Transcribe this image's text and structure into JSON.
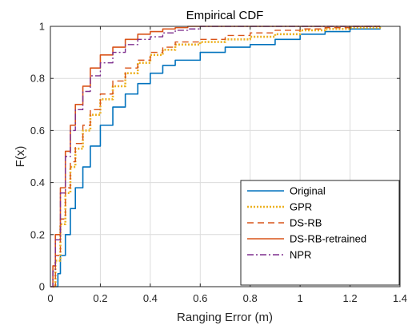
{
  "chart_data": {
    "type": "line",
    "title": "Empirical CDF",
    "xlabel": "Ranging Error (m)",
    "ylabel": "F(x)",
    "xlim": [
      0,
      1.4
    ],
    "ylim": [
      0,
      1
    ],
    "xticks": [
      "0",
      "0.2",
      "0.4",
      "0.6",
      "0.8",
      "1",
      "1.2",
      "1.4"
    ],
    "yticks": [
      "0",
      "0.2",
      "0.4",
      "0.6",
      "0.8",
      "1"
    ],
    "grid": true,
    "legend_position": "bottom-right",
    "series": [
      {
        "name": "Original",
        "color": "#0072BD",
        "dash": "solid",
        "points": [
          [
            0.02,
            0
          ],
          [
            0.03,
            0.05
          ],
          [
            0.04,
            0.12
          ],
          [
            0.06,
            0.2
          ],
          [
            0.08,
            0.3
          ],
          [
            0.1,
            0.38
          ],
          [
            0.13,
            0.46
          ],
          [
            0.16,
            0.54
          ],
          [
            0.2,
            0.62
          ],
          [
            0.25,
            0.69
          ],
          [
            0.3,
            0.74
          ],
          [
            0.35,
            0.78
          ],
          [
            0.4,
            0.82
          ],
          [
            0.45,
            0.85
          ],
          [
            0.5,
            0.87
          ],
          [
            0.6,
            0.9
          ],
          [
            0.7,
            0.92
          ],
          [
            0.8,
            0.93
          ],
          [
            0.9,
            0.95
          ],
          [
            1.0,
            0.97
          ],
          [
            1.1,
            0.98
          ],
          [
            1.2,
            0.99
          ],
          [
            1.32,
            1.0
          ]
        ]
      },
      {
        "name": "GPR",
        "color": "#EDB120",
        "dash": "dotted",
        "points": [
          [
            0.01,
            0
          ],
          [
            0.02,
            0.1
          ],
          [
            0.04,
            0.24
          ],
          [
            0.06,
            0.36
          ],
          [
            0.08,
            0.46
          ],
          [
            0.1,
            0.53
          ],
          [
            0.13,
            0.6
          ],
          [
            0.16,
            0.66
          ],
          [
            0.2,
            0.72
          ],
          [
            0.25,
            0.77
          ],
          [
            0.3,
            0.82
          ],
          [
            0.35,
            0.86
          ],
          [
            0.4,
            0.89
          ],
          [
            0.45,
            0.91
          ],
          [
            0.5,
            0.93
          ],
          [
            0.6,
            0.94
          ],
          [
            0.7,
            0.95
          ],
          [
            0.8,
            0.96
          ],
          [
            0.9,
            0.97
          ],
          [
            1.0,
            0.985
          ],
          [
            1.1,
            0.99
          ],
          [
            1.2,
            0.995
          ],
          [
            1.32,
            1.0
          ]
        ]
      },
      {
        "name": "DS-RB",
        "color": "#D95319",
        "dash": "dashed",
        "points": [
          [
            0.01,
            0
          ],
          [
            0.02,
            0.12
          ],
          [
            0.04,
            0.26
          ],
          [
            0.06,
            0.38
          ],
          [
            0.08,
            0.48
          ],
          [
            0.1,
            0.55
          ],
          [
            0.13,
            0.62
          ],
          [
            0.16,
            0.68
          ],
          [
            0.2,
            0.74
          ],
          [
            0.25,
            0.79
          ],
          [
            0.3,
            0.84
          ],
          [
            0.35,
            0.87
          ],
          [
            0.4,
            0.9
          ],
          [
            0.45,
            0.92
          ],
          [
            0.5,
            0.94
          ],
          [
            0.6,
            0.95
          ],
          [
            0.7,
            0.965
          ],
          [
            0.8,
            0.975
          ],
          [
            0.9,
            0.985
          ],
          [
            1.0,
            0.99
          ],
          [
            1.1,
            0.995
          ],
          [
            1.2,
            1.0
          ],
          [
            1.32,
            1.0
          ]
        ]
      },
      {
        "name": "DS-RB-retrained",
        "color": "#D95319",
        "dash": "solid",
        "points": [
          [
            0.0,
            0
          ],
          [
            0.01,
            0.08
          ],
          [
            0.02,
            0.2
          ],
          [
            0.04,
            0.38
          ],
          [
            0.06,
            0.52
          ],
          [
            0.08,
            0.62
          ],
          [
            0.1,
            0.7
          ],
          [
            0.13,
            0.77
          ],
          [
            0.16,
            0.84
          ],
          [
            0.2,
            0.89
          ],
          [
            0.25,
            0.92
          ],
          [
            0.3,
            0.95
          ],
          [
            0.35,
            0.97
          ],
          [
            0.4,
            0.98
          ],
          [
            0.45,
            0.99
          ],
          [
            0.5,
            0.995
          ],
          [
            0.55,
            1.0
          ],
          [
            1.32,
            1.0
          ]
        ]
      },
      {
        "name": "NPR",
        "color": "#7E2F8E",
        "dash": "dashdot",
        "points": [
          [
            0.0,
            0
          ],
          [
            0.01,
            0.06
          ],
          [
            0.02,
            0.18
          ],
          [
            0.04,
            0.36
          ],
          [
            0.06,
            0.5
          ],
          [
            0.08,
            0.6
          ],
          [
            0.1,
            0.68
          ],
          [
            0.13,
            0.75
          ],
          [
            0.16,
            0.81
          ],
          [
            0.2,
            0.86
          ],
          [
            0.25,
            0.9
          ],
          [
            0.3,
            0.93
          ],
          [
            0.35,
            0.95
          ],
          [
            0.4,
            0.96
          ],
          [
            0.45,
            0.975
          ],
          [
            0.5,
            0.985
          ],
          [
            0.55,
            0.99
          ],
          [
            0.6,
            1.0
          ],
          [
            1.32,
            1.0
          ]
        ]
      }
    ]
  }
}
